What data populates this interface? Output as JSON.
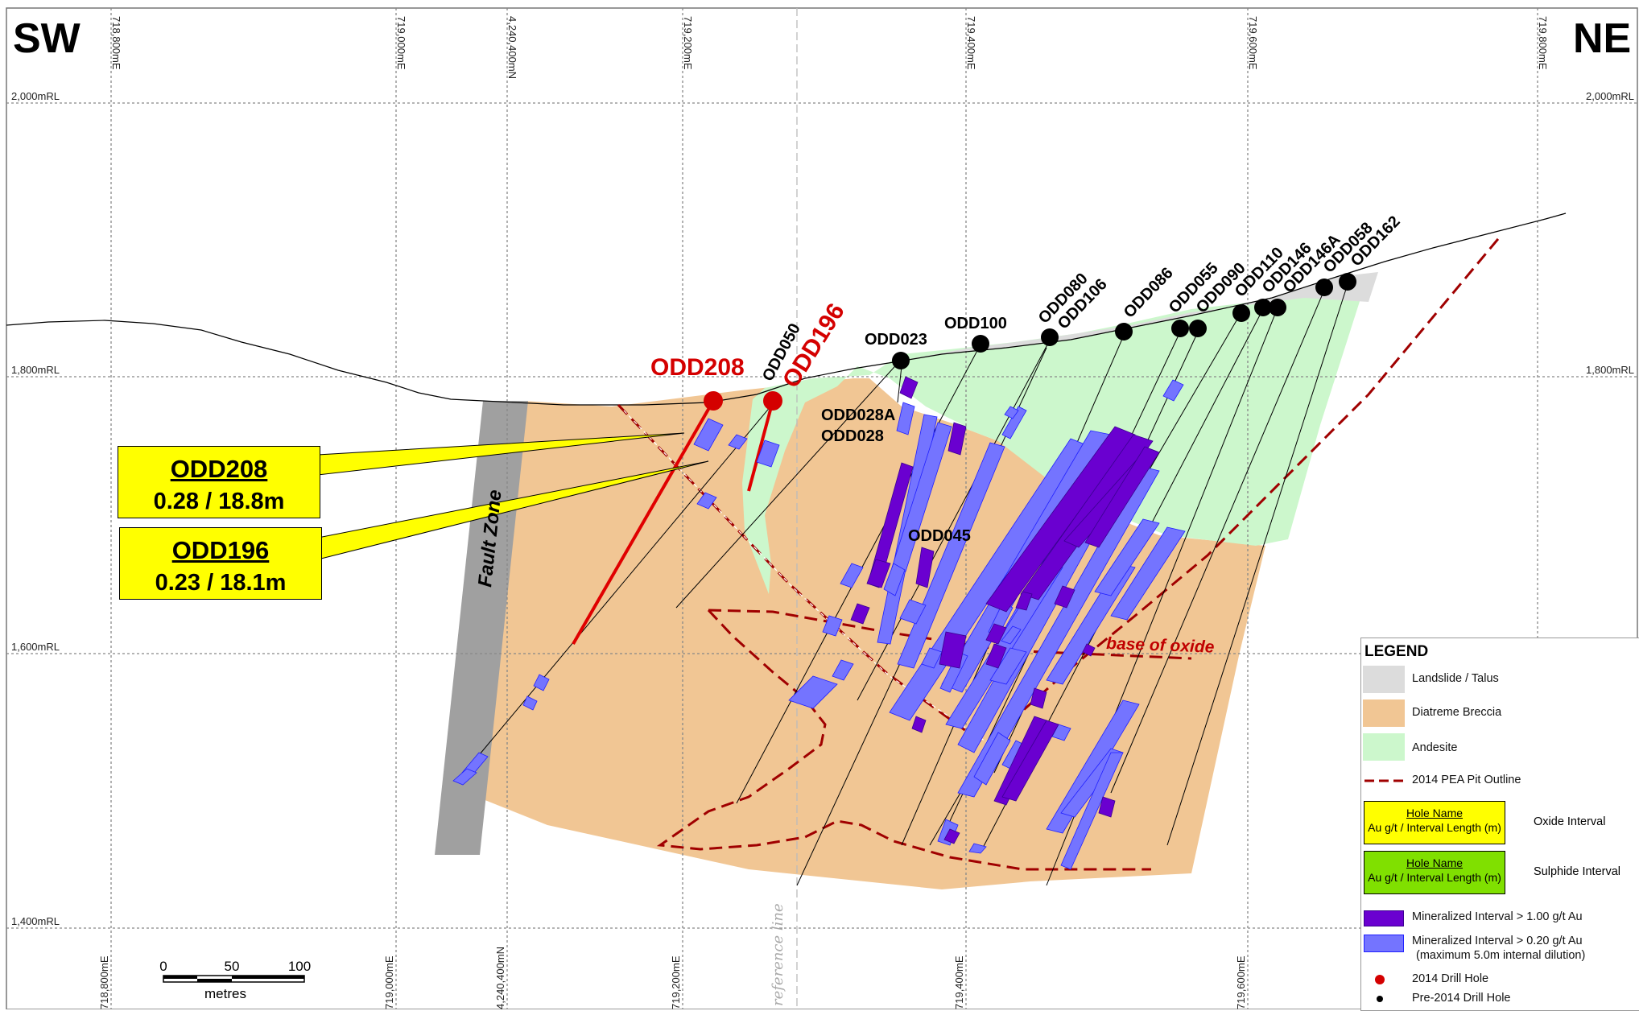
{
  "orientation": {
    "left": "SW",
    "right": "NE"
  },
  "grid": {
    "eastings_top": [
      "718,800mE",
      "719,000mE",
      "4,240,400mN",
      "719,200mE",
      "719,400mE",
      "719,600mE",
      "719,800mE"
    ],
    "eastings_bottom": [
      "718,800mE",
      "719,000mE",
      "4,240,400mN",
      "719,200mE",
      "719,400mE",
      "719,600mE"
    ],
    "rl_levels": [
      "2,000mRL",
      "1,800mRL",
      "1,600mRL",
      "1,400mRL"
    ],
    "reference_line_label": "reference line"
  },
  "annotations": {
    "fault_zone": "Fault Zone",
    "base_of_oxide": "base of oxide"
  },
  "drill_holes_2014": [
    {
      "name": "ODD208"
    },
    {
      "name": "ODD196"
    }
  ],
  "drill_holes_pre2014": [
    "ODD050",
    "ODD023",
    "ODD100",
    "ODD080",
    "ODD106",
    "ODD086",
    "ODD055",
    "ODD090",
    "ODD110",
    "ODD146",
    "ODD146A",
    "ODD058",
    "ODD162",
    "ODD028A",
    "ODD028",
    "ODD045"
  ],
  "callouts": [
    {
      "hole": "ODD208",
      "value": "0.28 / 18.8m"
    },
    {
      "hole": "ODD196",
      "value": "0.23 / 18.1m"
    }
  ],
  "scale_bar": {
    "ticks": [
      "0",
      "50",
      "100"
    ],
    "unit": "metres"
  },
  "legend": {
    "title": "LEGEND",
    "items": [
      {
        "label": "Landslide / Talus",
        "color": "#dcdcdc"
      },
      {
        "label": "Diatreme Breccia",
        "color": "#f1c694"
      },
      {
        "label": "Andesite",
        "color": "#ccf7cc"
      },
      {
        "label": "2014 PEA Pit Outline",
        "color": "#a00000"
      }
    ],
    "oxide_box": {
      "name": "Hole Name",
      "value": "Au g/t / Interval Length (m)",
      "side": "Oxide Interval",
      "color": "#ffff00"
    },
    "sulphide_box": {
      "name": "Hole Name",
      "value": "Au g/t / Interval Length (m)",
      "side": "Sulphide Interval",
      "color": "#80e000"
    },
    "mineral_high": {
      "label": "Mineralized Interval > 1.00 g/t Au",
      "color": "#6a00d0"
    },
    "mineral_low": {
      "label": "Mineralized Interval > 0.20 g/t Au",
      "sub": "(maximum 5.0m internal dilution)",
      "color": "#7474ff"
    },
    "drill_2014": {
      "label": "2014 Drill Hole",
      "color": "#d40000"
    },
    "drill_pre2014": {
      "label": "Pre-2014 Drill Hole",
      "color": "#000000"
    }
  }
}
